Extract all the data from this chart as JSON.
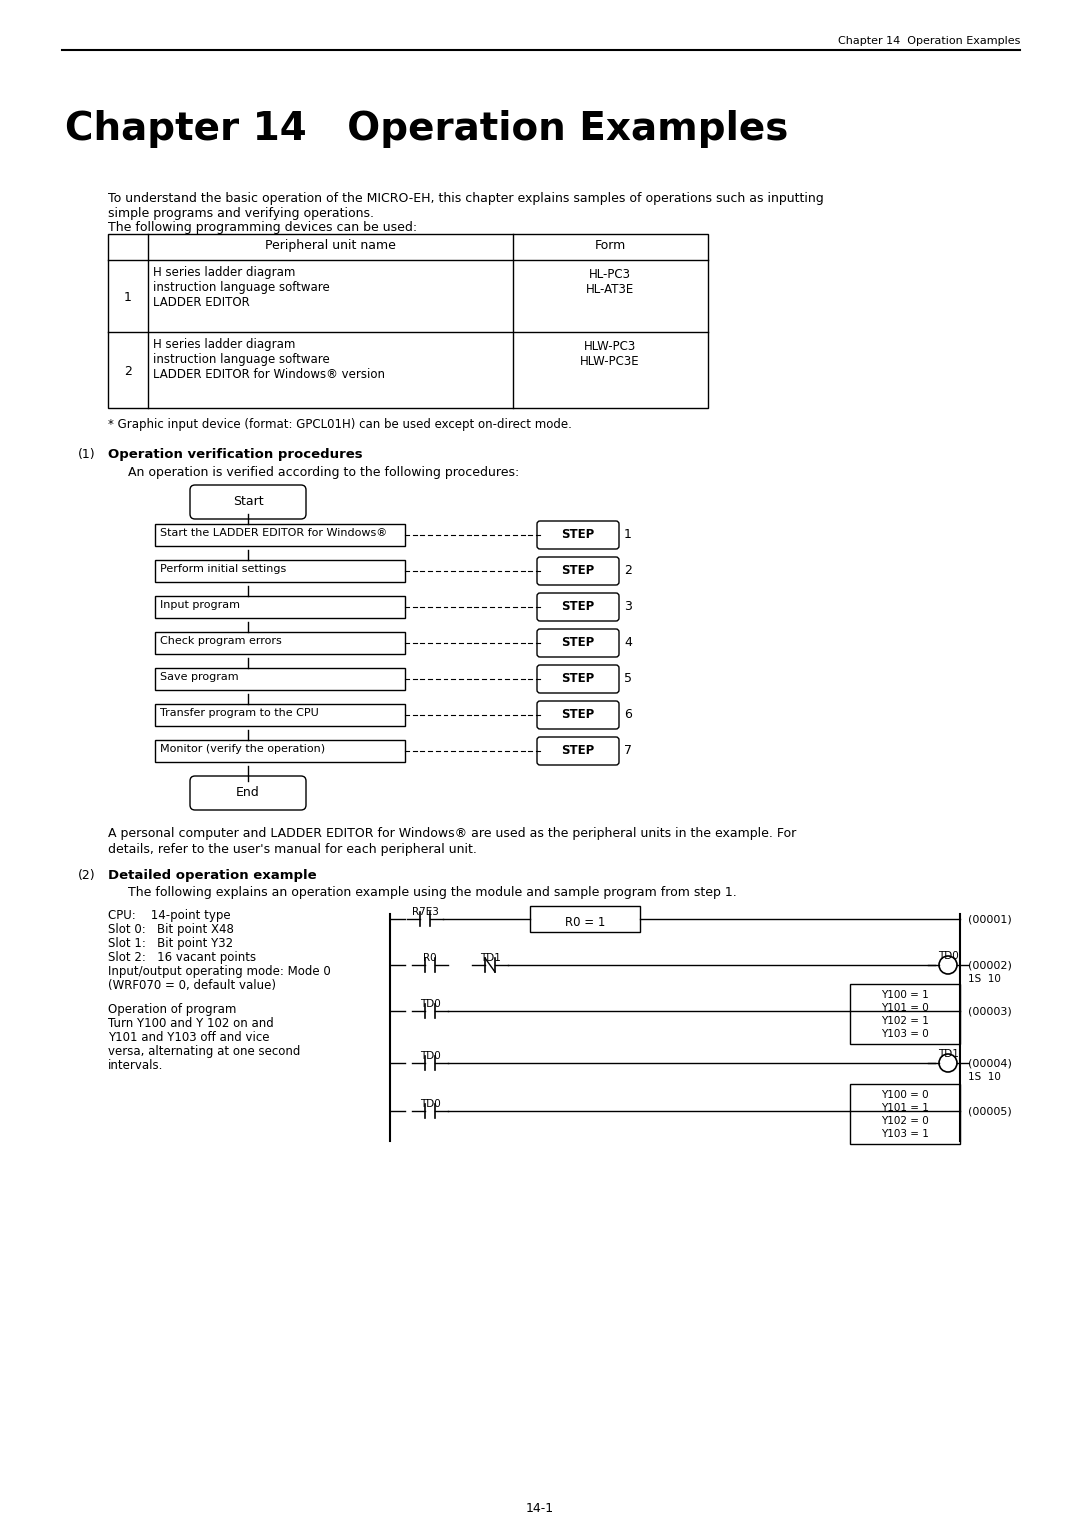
{
  "header_text": "Chapter 14  Operation Examples",
  "chapter_title": "Chapter 14   Operation Examples",
  "intro_text1": "To understand the basic operation of the MICRO-EH, this chapter explains samples of operations such as inputting",
  "intro_text2": "simple programs and verifying operations.",
  "intro_text3": "The following programming devices can be used:",
  "table_rows": [
    [
      "1",
      "H series ladder diagram\ninstruction language software\nLADDER EDITOR",
      "HL-PC3\nHL-AT3E"
    ],
    [
      "2",
      "H series ladder diagram\ninstruction language software\nLADDER EDITOR for Windows® version",
      "HLW-PC3\nHLW-PC3E"
    ]
  ],
  "footnote": "* Graphic input device (format: GPCL01H) can be used except on-direct mode.",
  "section1_num": "(1)",
  "section1_title": "Operation verification procedures",
  "section1_desc": "An operation is verified according to the following procedures:",
  "flowchart_steps": [
    "Start the LADDER EDITOR for Windows®",
    "Perform initial settings",
    "Input program",
    "Check program errors",
    "Save program",
    "Transfer program to the CPU",
    "Monitor (verify the operation)"
  ],
  "between_text": "A personal computer and LADDER EDITOR for Windows® are used as the peripheral units in the example. For\ndetails, refer to the user's manual for each peripheral unit.",
  "section2_num": "(2)",
  "section2_title": "Detailed operation example",
  "section2_desc": "The following explains an operation example using the module and sample program from step 1.",
  "cpu_info": [
    "CPU:    14-point type",
    "Slot 0:   Bit point X48",
    "Slot 1:   Bit point Y32",
    "Slot 2:   16 vacant points",
    "Input/output operating mode: Mode 0",
    "(WRF070 = 0, default value)"
  ],
  "op_text": [
    "Operation of program",
    "Turn Y100 and Y 102 on and",
    "Y101 and Y103 off and vice",
    "versa, alternating at one second",
    "intervals."
  ],
  "page_num": "14-1",
  "bg_color": "#ffffff"
}
